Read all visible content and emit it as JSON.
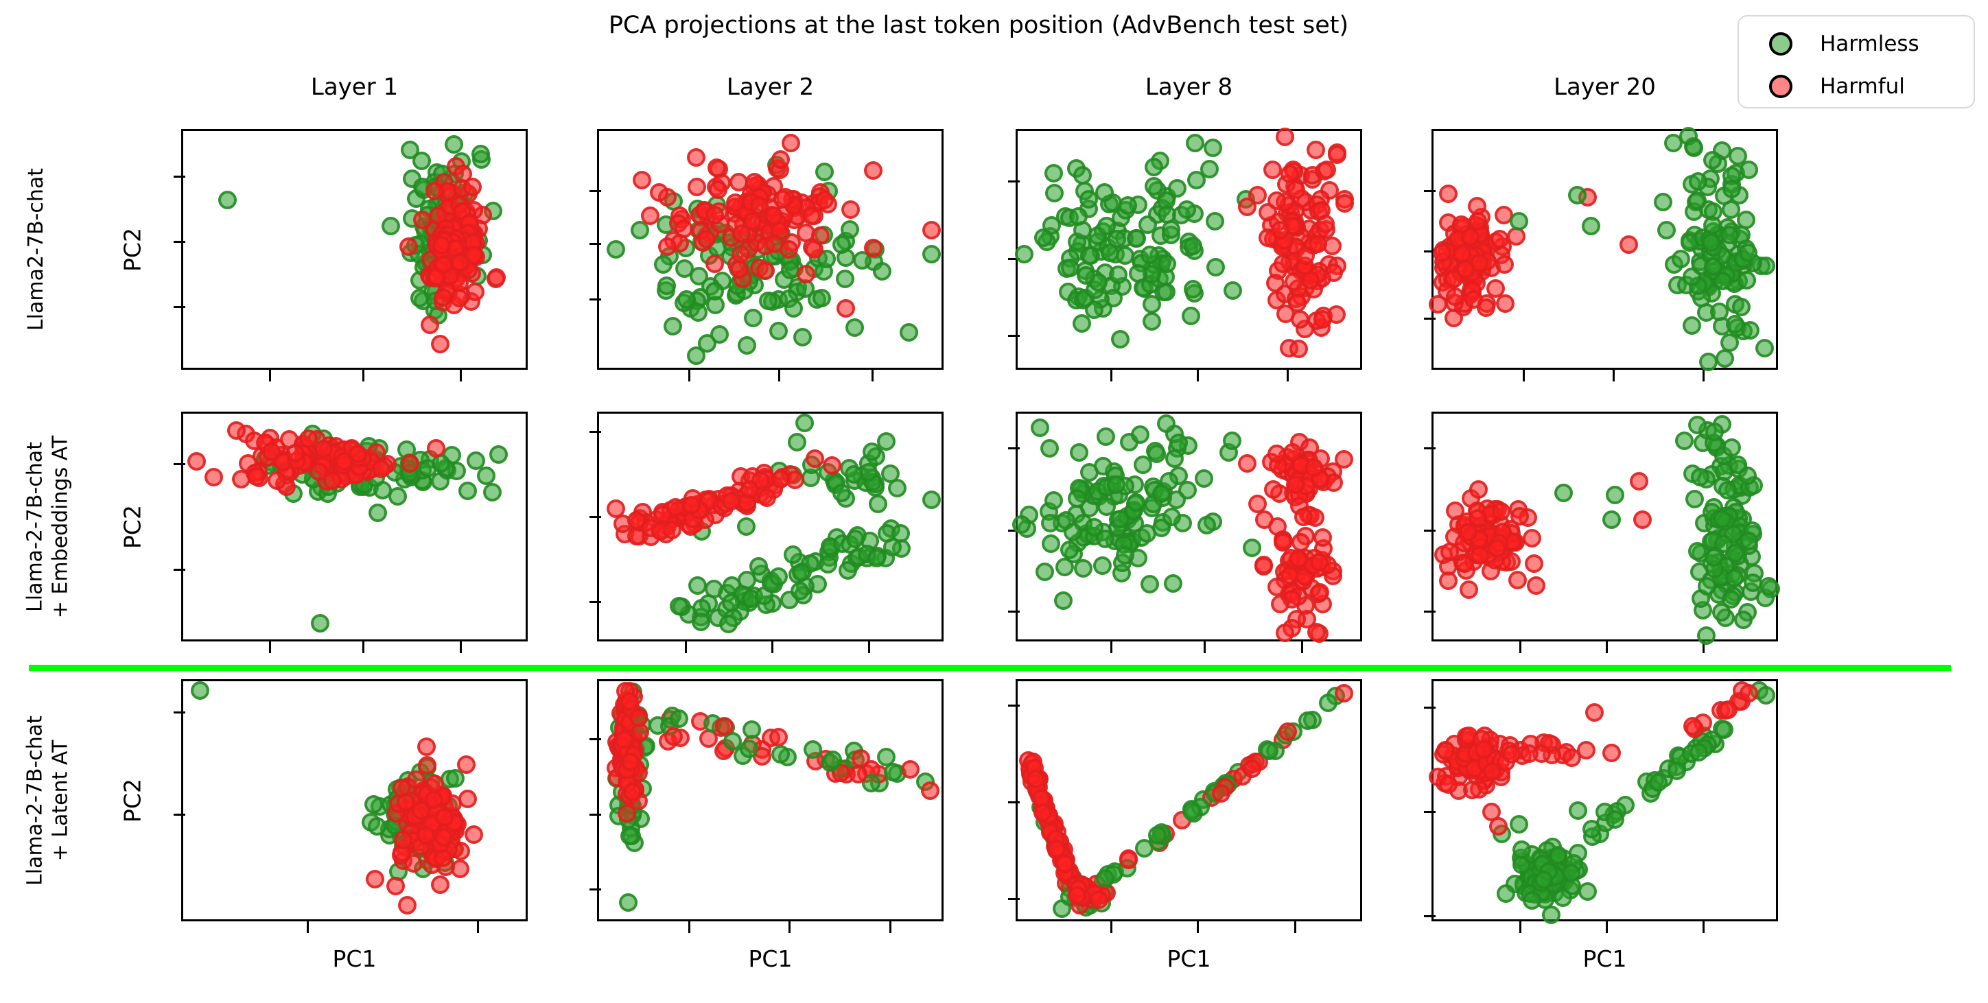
{
  "title": "PCA projections at the last token position (AdvBench test set)",
  "columns": [
    "Layer 1",
    "Layer 2",
    "Layer 8",
    "Layer 20"
  ],
  "rows": [
    {
      "label_lines": [
        "Llama2-7B-chat"
      ]
    },
    {
      "label_lines": [
        "Llama-2-7B-chat",
        "+ Embeddings AT"
      ]
    },
    {
      "label_lines": [
        "Llama-2-7B-chat",
        "+ Latent AT"
      ]
    }
  ],
  "axes": {
    "xlabel": "PC1",
    "ylabel": "PC2"
  },
  "legend": {
    "items": [
      {
        "label": "Harmless",
        "series": "harmless"
      },
      {
        "label": "Harmful",
        "series": "harmful"
      }
    ]
  },
  "series_styles": {
    "harmless": {
      "fill": "rgba(44,160,44,0.55)",
      "edge": "rgba(34,139,34,0.85)"
    },
    "harmful": {
      "fill": "rgba(255,35,35,0.55)",
      "edge": "rgba(225,30,30,0.85)"
    }
  },
  "separator_color": "#00FF00",
  "chart_data": [
    {
      "type": "scatter",
      "row": 0,
      "col": 0,
      "model": "Llama2-7B-chat",
      "layer": "Layer 1",
      "axis_note": "no numeric tick labels; unlabeled PCA axes",
      "xticks": [
        0.25,
        0.52,
        0.8
      ],
      "yticks": [
        0.19,
        0.46,
        0.73
      ],
      "clusters": [
        {
          "kind": "points",
          "series": "harmless",
          "pts": [
            [
              0.13,
              0.29
            ]
          ]
        },
        {
          "kind": "blob",
          "series": "harmless",
          "n": 55,
          "cx": 0.77,
          "cy": 0.33,
          "sx": 0.055,
          "sy": 0.14
        },
        {
          "kind": "blob",
          "series": "harmless",
          "n": 25,
          "cx": 0.73,
          "cy": 0.55,
          "sx": 0.05,
          "sy": 0.12
        },
        {
          "kind": "blob",
          "series": "harmful",
          "n": 120,
          "cx": 0.79,
          "cy": 0.47,
          "sx": 0.04,
          "sy": 0.12
        },
        {
          "kind": "blob",
          "series": "harmful",
          "n": 30,
          "cx": 0.81,
          "cy": 0.56,
          "sx": 0.05,
          "sy": 0.08
        },
        {
          "kind": "points",
          "series": "harmful",
          "pts": [
            [
              0.72,
              0.82
            ],
            [
              0.75,
              0.9
            ]
          ]
        }
      ]
    },
    {
      "type": "scatter",
      "row": 0,
      "col": 1,
      "model": "Llama2-7B-chat",
      "layer": "Layer 2",
      "xticks": [
        0.26,
        0.52,
        0.79
      ],
      "yticks": [
        0.25,
        0.47,
        0.7
      ],
      "clusters": [
        {
          "kind": "blob",
          "series": "harmless",
          "n": 110,
          "cx": 0.46,
          "cy": 0.58,
          "sx": 0.15,
          "sy": 0.14
        },
        {
          "kind": "points",
          "series": "harmless",
          "pts": [
            [
              0.05,
              0.5
            ],
            [
              0.12,
              0.42
            ],
            [
              0.97,
              0.52
            ]
          ]
        },
        {
          "kind": "blob",
          "series": "harmful",
          "n": 115,
          "cx": 0.47,
          "cy": 0.36,
          "sx": 0.13,
          "sy": 0.11
        },
        {
          "kind": "points",
          "series": "harmful",
          "pts": [
            [
              0.56,
              0.05
            ],
            [
              0.53,
              0.12
            ],
            [
              0.97,
              0.42
            ],
            [
              0.72,
              0.75
            ]
          ]
        }
      ]
    },
    {
      "type": "scatter",
      "row": 0,
      "col": 2,
      "model": "Llama2-7B-chat",
      "layer": "Layer 8",
      "xticks": [
        0.27,
        0.52,
        0.78
      ],
      "yticks": [
        0.21,
        0.53,
        0.85
      ],
      "clusters": [
        {
          "kind": "blob",
          "series": "harmless",
          "n": 115,
          "cx": 0.33,
          "cy": 0.47,
          "sx": 0.14,
          "sy": 0.19
        },
        {
          "kind": "points",
          "series": "harmless",
          "pts": [
            [
              0.02,
              0.52
            ],
            [
              0.57,
              0.07
            ]
          ]
        },
        {
          "kind": "blob",
          "series": "harmful",
          "n": 100,
          "cx": 0.84,
          "cy": 0.47,
          "sx": 0.05,
          "sy": 0.21
        },
        {
          "kind": "points",
          "series": "harmful",
          "pts": [
            [
              0.7,
              0.27
            ],
            [
              0.67,
              0.32
            ],
            [
              0.73,
              0.45
            ],
            [
              0.82,
              0.92
            ]
          ]
        }
      ]
    },
    {
      "type": "scatter",
      "row": 0,
      "col": 3,
      "model": "Llama2-7B-chat",
      "layer": "Layer 20",
      "xticks": [
        0.26,
        0.52,
        0.78
      ],
      "yticks": [
        0.25,
        0.5,
        0.78
      ],
      "clusters": [
        {
          "kind": "blob",
          "series": "harmful",
          "n": 95,
          "cx": 0.1,
          "cy": 0.55,
          "sx": 0.05,
          "sy": 0.09
        },
        {
          "kind": "points",
          "series": "harmful",
          "pts": [
            [
              0.21,
              0.73
            ],
            [
              0.45,
              0.28
            ],
            [
              0.57,
              0.48
            ],
            [
              0.13,
              0.38
            ]
          ]
        },
        {
          "kind": "blob",
          "series": "harmless",
          "n": 105,
          "cx": 0.84,
          "cy": 0.52,
          "sx": 0.055,
          "sy": 0.23
        },
        {
          "kind": "points",
          "series": "harmless",
          "pts": [
            [
              0.7,
              0.05
            ],
            [
              0.76,
              0.07
            ],
            [
              0.42,
              0.27
            ],
            [
              0.46,
              0.4
            ],
            [
              0.67,
              0.3
            ],
            [
              0.68,
              0.42
            ],
            [
              0.25,
              0.38
            ]
          ]
        }
      ]
    },
    {
      "type": "scatter",
      "row": 1,
      "col": 0,
      "model": "Llama-2-7B-chat + Embeddings AT",
      "layer": "Layer 1",
      "xticks": [
        0.25,
        0.52,
        0.8
      ],
      "yticks": [
        0.22,
        0.68
      ],
      "clusters": [
        {
          "kind": "blob",
          "series": "harmless",
          "n": 85,
          "cx": 0.52,
          "cy": 0.25,
          "sx": 0.16,
          "sy": 0.06
        },
        {
          "kind": "points",
          "series": "harmless",
          "pts": [
            [
              0.4,
              0.93
            ],
            [
              0.92,
              0.18
            ]
          ]
        },
        {
          "kind": "blob",
          "series": "harmful",
          "n": 95,
          "cx": 0.4,
          "cy": 0.2,
          "sx": 0.13,
          "sy": 0.05
        },
        {
          "kind": "points",
          "series": "harmful",
          "pts": [
            [
              0.04,
              0.21
            ],
            [
              0.09,
              0.28
            ]
          ]
        }
      ]
    },
    {
      "type": "scatter",
      "row": 1,
      "col": 1,
      "model": "Llama-2-7B-chat + Embeddings AT",
      "layer": "Layer 2",
      "xticks": [
        0.25,
        0.5,
        0.78
      ],
      "yticks": [
        0.08,
        0.45,
        0.82
      ],
      "clusters": [
        {
          "kind": "line",
          "series": "harmless",
          "n": 70,
          "x1": 0.3,
          "y1": 0.88,
          "x2": 0.85,
          "y2": 0.55,
          "jitter": 0.08
        },
        {
          "kind": "blob",
          "series": "harmless",
          "n": 28,
          "cx": 0.74,
          "cy": 0.28,
          "sx": 0.09,
          "sy": 0.07
        },
        {
          "kind": "points",
          "series": "harmless",
          "pts": [
            [
              0.6,
              0.04
            ],
            [
              0.97,
              0.38
            ],
            [
              0.3,
              0.52
            ],
            [
              0.43,
              0.5
            ]
          ]
        },
        {
          "kind": "line",
          "series": "harmful",
          "n": 85,
          "x1": 0.1,
          "y1": 0.52,
          "x2": 0.57,
          "y2": 0.27,
          "jitter": 0.055
        },
        {
          "kind": "points",
          "series": "harmful",
          "pts": [
            [
              0.05,
              0.42
            ],
            [
              0.63,
              0.2
            ],
            [
              0.68,
              0.23
            ]
          ]
        }
      ]
    },
    {
      "type": "scatter",
      "row": 1,
      "col": 2,
      "model": "Llama-2-7B-chat + Embeddings AT",
      "layer": "Layer 8",
      "xticks": [
        0.27,
        0.54,
        0.82
      ],
      "yticks": [
        0.15,
        0.51,
        0.86
      ],
      "clusters": [
        {
          "kind": "blob",
          "series": "harmless",
          "n": 110,
          "cx": 0.3,
          "cy": 0.44,
          "sx": 0.14,
          "sy": 0.19
        },
        {
          "kind": "points",
          "series": "harmless",
          "pts": [
            [
              0.01,
              0.49
            ],
            [
              0.08,
              0.7
            ]
          ]
        },
        {
          "kind": "blob",
          "series": "harmful",
          "n": 50,
          "cx": 0.84,
          "cy": 0.27,
          "sx": 0.05,
          "sy": 0.09
        },
        {
          "kind": "blob",
          "series": "harmful",
          "n": 55,
          "cx": 0.82,
          "cy": 0.7,
          "sx": 0.05,
          "sy": 0.11
        },
        {
          "kind": "points",
          "series": "harmful",
          "pts": [
            [
              0.67,
              0.22
            ],
            [
              0.7,
              0.4
            ],
            [
              0.72,
              0.47
            ],
            [
              0.78,
              0.97
            ]
          ]
        }
      ]
    },
    {
      "type": "scatter",
      "row": 1,
      "col": 3,
      "model": "Llama-2-7B-chat + Embeddings AT",
      "layer": "Layer 20",
      "xticks": [
        0.25,
        0.5,
        0.78
      ],
      "yticks": [
        0.15,
        0.51,
        0.86
      ],
      "clusters": [
        {
          "kind": "blob",
          "series": "harmful",
          "n": 90,
          "cx": 0.16,
          "cy": 0.55,
          "sx": 0.055,
          "sy": 0.09
        },
        {
          "kind": "points",
          "series": "harmful",
          "pts": [
            [
              0.6,
              0.3
            ],
            [
              0.61,
              0.47
            ],
            [
              0.3,
              0.76
            ]
          ]
        },
        {
          "kind": "blob",
          "series": "harmless",
          "n": 105,
          "cx": 0.86,
          "cy": 0.52,
          "sx": 0.05,
          "sy": 0.23
        },
        {
          "kind": "points",
          "series": "harmless",
          "pts": [
            [
              0.38,
              0.35
            ],
            [
              0.53,
              0.36
            ],
            [
              0.52,
              0.47
            ],
            [
              0.77,
              0.05
            ],
            [
              0.82,
              0.08
            ]
          ]
        }
      ]
    },
    {
      "type": "scatter",
      "row": 2,
      "col": 0,
      "model": "Llama-2-7B-chat + Latent AT",
      "layer": "Layer 1",
      "xticks": [
        0.36,
        0.85
      ],
      "yticks": [
        0.13,
        0.55
      ],
      "clusters": [
        {
          "kind": "points",
          "series": "harmless",
          "pts": [
            [
              0.05,
              0.04
            ]
          ]
        },
        {
          "kind": "blob",
          "series": "harmless",
          "n": 65,
          "cx": 0.68,
          "cy": 0.57,
          "sx": 0.07,
          "sy": 0.12
        },
        {
          "kind": "blob",
          "series": "harmful",
          "n": 115,
          "cx": 0.73,
          "cy": 0.62,
          "sx": 0.05,
          "sy": 0.1
        },
        {
          "kind": "points",
          "series": "harmful",
          "pts": [
            [
              0.62,
              0.86
            ],
            [
              0.655,
              0.94
            ],
            [
              0.56,
              0.83
            ]
          ]
        }
      ]
    },
    {
      "type": "scatter",
      "row": 2,
      "col": 1,
      "model": "Llama-2-7B-chat + Latent AT",
      "layer": "Layer 2",
      "xticks": [
        0.26,
        0.55,
        0.84
      ],
      "yticks": [
        0.24,
        0.55,
        0.86
      ],
      "clusters": [
        {
          "kind": "blob",
          "series": "harmless",
          "n": 35,
          "cx": 0.09,
          "cy": 0.4,
          "sx": 0.018,
          "sy": 0.17
        },
        {
          "kind": "points",
          "series": "harmless",
          "pts": [
            [
              0.085,
              0.58
            ],
            [
              0.09,
              0.65
            ],
            [
              0.085,
              0.93
            ]
          ]
        },
        {
          "kind": "blob",
          "series": "harmful",
          "n": 115,
          "cx": 0.085,
          "cy": 0.27,
          "sx": 0.013,
          "sy": 0.11
        },
        {
          "kind": "line",
          "series": "mixed",
          "mix": 0.55,
          "n": 55,
          "x1": 0.13,
          "y1": 0.17,
          "x2": 0.95,
          "y2": 0.42,
          "jitter": 0.06
        }
      ]
    },
    {
      "type": "scatter",
      "row": 2,
      "col": 2,
      "model": "Llama-2-7B-chat + Latent AT",
      "layer": "Layer 8",
      "shape_note": "points lie on a V-shaped curve",
      "xticks": [
        0.27,
        0.52,
        0.8
      ],
      "yticks": [
        0.1,
        0.5,
        0.9
      ],
      "clusters": [
        {
          "kind": "line",
          "series": "harmless",
          "n": 18,
          "x1": 0.04,
          "y1": 0.4,
          "x2": 0.17,
          "y2": 0.9,
          "jitter": 0.012
        },
        {
          "kind": "line",
          "series": "harmful",
          "n": 70,
          "x1": 0.035,
          "y1": 0.33,
          "x2": 0.16,
          "y2": 0.88,
          "jitter": 0.012
        },
        {
          "kind": "blob",
          "series": "harmless",
          "n": 12,
          "cx": 0.21,
          "cy": 0.91,
          "sx": 0.04,
          "sy": 0.03
        },
        {
          "kind": "blob",
          "series": "harmful",
          "n": 25,
          "cx": 0.2,
          "cy": 0.9,
          "sx": 0.035,
          "sy": 0.025
        },
        {
          "kind": "line",
          "series": "mixed",
          "mix": 0.45,
          "n": 50,
          "x1": 0.26,
          "y1": 0.83,
          "x2": 0.96,
          "y2": 0.04,
          "jitter": 0.012
        }
      ]
    },
    {
      "type": "scatter",
      "row": 2,
      "col": 3,
      "model": "Llama-2-7B-chat + Latent AT",
      "layer": "Layer 20",
      "xticks": [
        0.25,
        0.5,
        0.78
      ],
      "yticks": [
        0.11,
        0.54,
        0.97
      ],
      "clusters": [
        {
          "kind": "blob",
          "series": "harmless",
          "n": 85,
          "cx": 0.33,
          "cy": 0.8,
          "sx": 0.05,
          "sy": 0.065
        },
        {
          "kind": "line",
          "series": "harmless",
          "n": 30,
          "x1": 0.44,
          "y1": 0.66,
          "x2": 0.84,
          "y2": 0.21,
          "jitter": 0.02
        },
        {
          "kind": "points",
          "series": "harmless",
          "pts": [
            [
              0.95,
              0.04
            ],
            [
              0.97,
              0.06
            ],
            [
              0.2,
              0.64
            ],
            [
              0.25,
              0.6
            ],
            [
              0.5,
              0.55
            ],
            [
              0.53,
              0.58
            ]
          ]
        },
        {
          "kind": "blob",
          "series": "harmful",
          "n": 75,
          "cx": 0.115,
          "cy": 0.34,
          "sx": 0.045,
          "sy": 0.055
        },
        {
          "kind": "line",
          "series": "harmful",
          "n": 16,
          "x1": 0.2,
          "y1": 0.28,
          "x2": 0.47,
          "y2": 0.3,
          "jitter": 0.03
        },
        {
          "kind": "line",
          "series": "harmful",
          "n": 7,
          "x1": 0.74,
          "y1": 0.21,
          "x2": 0.92,
          "y2": 0.07,
          "jitter": 0.015
        },
        {
          "kind": "points",
          "series": "harmful",
          "pts": [
            [
              0.17,
              0.55
            ],
            [
              0.19,
              0.61
            ],
            [
              0.47,
              0.13
            ],
            [
              0.52,
              0.3
            ],
            [
              0.9,
              0.04
            ],
            [
              0.92,
              0.05
            ],
            [
              0.86,
              0.12
            ]
          ]
        }
      ]
    }
  ]
}
